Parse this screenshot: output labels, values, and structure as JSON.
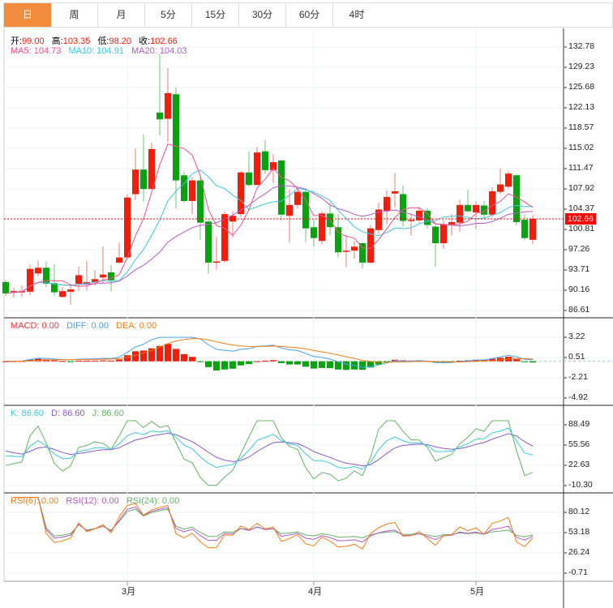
{
  "tabs": [
    {
      "label": "日",
      "active": true
    },
    {
      "label": "周"
    },
    {
      "label": "月"
    },
    {
      "label": "5分"
    },
    {
      "label": "15分"
    },
    {
      "label": "30分"
    },
    {
      "label": "60分"
    },
    {
      "label": "4时"
    }
  ],
  "ohlc_legend": {
    "open_label": "开:",
    "open": "99.00",
    "high_label": "高:",
    "high": "103.35",
    "low_label": "低:",
    "low": "98.20",
    "close_label": "收:",
    "close": "102.66"
  },
  "ma_legend": {
    "ma5": "MA5: 104.73",
    "ma10": "MA10: 104.91",
    "ma20": "MA20: 104.03"
  },
  "macd_legend": {
    "macd": "MACD: 0.00",
    "diff": "DIFF: 0.00",
    "dea": "DEA: 0.00"
  },
  "kdj_legend": {
    "k": "K: 86.60",
    "d": "D: 86.60",
    "j": "J: 86.60"
  },
  "rsi_legend": {
    "rsi6": "RSI(6): 0.00",
    "rsi12": "RSI(12): 0.00",
    "rsi24": "RSI(24): 0.00"
  },
  "last_price": "102.66",
  "colors": {
    "up": "#f01e0a",
    "down": "#09a30f",
    "ma5": "#f0508c",
    "ma10": "#3cc8dc",
    "ma20": "#b45ac8",
    "diff": "#4aa0f0",
    "dea": "#f57d14",
    "accent": "#f08c3c"
  },
  "chart_data": {
    "type": "candlestick",
    "x_tick_labels": [
      "3月",
      "4月",
      "5月"
    ],
    "x_tick_index": [
      15,
      38,
      58
    ],
    "price_axis": [
      "132.78",
      "129.23",
      "125.68",
      "122.13",
      "118.57",
      "115.02",
      "111.47",
      "107.92",
      "104.37",
      "100.81",
      "97.26",
      "93.71",
      "90.16",
      "86.61"
    ],
    "price_range": [
      86.61,
      132.78
    ],
    "macd_axis": [
      "3.22",
      "0.51",
      "-2.21",
      "-4.92"
    ],
    "macd_range": [
      -4.92,
      3.22
    ],
    "kdj_axis": [
      "88.49",
      "55.56",
      "22.63",
      "-10.30"
    ],
    "kdj_range": [
      -10.3,
      88.49
    ],
    "rsi_axis": [
      "80.12",
      "53.18",
      "26.24",
      "-0.71"
    ],
    "rsi_range": [
      -0.71,
      80.12
    ],
    "candles": [
      [
        91.6,
        92,
        89.2,
        89.6
      ],
      [
        89.7,
        90.6,
        88.9,
        90.0
      ],
      [
        89.8,
        91,
        89,
        90.0
      ],
      [
        89.9,
        94.6,
        89.3,
        93.9
      ],
      [
        93.1,
        95.3,
        92.6,
        94.1
      ],
      [
        94.1,
        95.2,
        90.7,
        91.3
      ],
      [
        91.4,
        94.7,
        89.2,
        89.8
      ],
      [
        89.0,
        90.7,
        88.8,
        90.0
      ],
      [
        89.9,
        91.3,
        87.6,
        90.3
      ],
      [
        91.3,
        94.3,
        90.0,
        92.8
      ],
      [
        91.2,
        95.3,
        90.1,
        91.6
      ],
      [
        91.6,
        93.7,
        91,
        92.1
      ],
      [
        92.4,
        97.8,
        91.5,
        92.9
      ],
      [
        93.3,
        94.6,
        90.0,
        91.9
      ],
      [
        95.0,
        98.5,
        94.8,
        95.9
      ],
      [
        95.9,
        107,
        95.5,
        106.4
      ],
      [
        107,
        115,
        106,
        111.3
      ],
      [
        111.3,
        117.5,
        105.7,
        107.9
      ],
      [
        107.9,
        116,
        107.9,
        114.9
      ],
      [
        121.3,
        131.5,
        117.3,
        120.1
      ],
      [
        120.2,
        129.1,
        116.1,
        124.7
      ],
      [
        124.5,
        125.7,
        104.5,
        109.4
      ],
      [
        110.3,
        111,
        105.5,
        105.8
      ],
      [
        105.8,
        110,
        103.5,
        109.4
      ],
      [
        109.4,
        110,
        99,
        102
      ],
      [
        102.2,
        102.5,
        93,
        95
      ],
      [
        95.0,
        99.5,
        93.8,
        95.2
      ],
      [
        95.3,
        104,
        95,
        103.5
      ],
      [
        102.2,
        104,
        99.4,
        103.2
      ],
      [
        103.5,
        111,
        103,
        110.8
      ],
      [
        110.8,
        114.5,
        108.3,
        108.6
      ],
      [
        108.6,
        115.3,
        108.6,
        114.3
      ],
      [
        114.5,
        116.5,
        110.5,
        111.2
      ],
      [
        111.2,
        114,
        109,
        112.6
      ],
      [
        112.9,
        113,
        102.3,
        103.4
      ],
      [
        103.2,
        107.8,
        98.5,
        105.1
      ],
      [
        105.1,
        108,
        104.5,
        107.4
      ],
      [
        107.4,
        108,
        98.6,
        101
      ],
      [
        101.2,
        102.5,
        97.8,
        99.3
      ],
      [
        98.8,
        104,
        98.2,
        103.6
      ],
      [
        103.6,
        105.5,
        99.8,
        101.2
      ],
      [
        101.2,
        103.5,
        95.9,
        96.8
      ],
      [
        97.1,
        99.8,
        94.2,
        97.1
      ],
      [
        97.1,
        98.8,
        95.7,
        97.8
      ],
      [
        98.4,
        98.6,
        93.9,
        95
      ],
      [
        95,
        101.5,
        94.8,
        101
      ],
      [
        100.7,
        105.5,
        100,
        104.3
      ],
      [
        104.1,
        107.7,
        101.7,
        106.5
      ],
      [
        107.1,
        110.7,
        104.7,
        107.5
      ],
      [
        107,
        108.5,
        101.3,
        102.3
      ],
      [
        102.4,
        103.5,
        99.7,
        102.5
      ],
      [
        102.4,
        104.8,
        102,
        104.1
      ],
      [
        104.1,
        104.5,
        101,
        101.6
      ],
      [
        101.3,
        101.5,
        94.3,
        98.4
      ],
      [
        98.4,
        102.5,
        97.4,
        101.7
      ],
      [
        101.7,
        103.5,
        99.7,
        102.1
      ],
      [
        102,
        106,
        100.4,
        105.1
      ],
      [
        105.1,
        107.8,
        103.8,
        104
      ],
      [
        103.8,
        105.7,
        100.9,
        105.1
      ],
      [
        105,
        105.8,
        102.8,
        103.4
      ],
      [
        103.4,
        108.2,
        103,
        107.5
      ],
      [
        107.4,
        111.5,
        107,
        108.7
      ],
      [
        108.3,
        111.1,
        107.9,
        110.6
      ],
      [
        110.3,
        110.5,
        101.5,
        102.1
      ],
      [
        102.5,
        103.5,
        98.9,
        99.3
      ],
      [
        99.0,
        103.35,
        98.2,
        102.66
      ]
    ]
  }
}
